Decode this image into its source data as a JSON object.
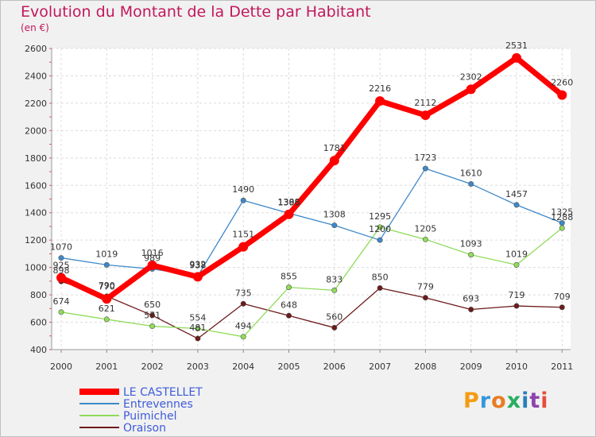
{
  "title": "Evolution du Montant de la Dette par Habitant",
  "subtitle": "(en €)",
  "logo": {
    "letters": [
      "P",
      "r",
      "o",
      "x",
      "i",
      "t",
      "i"
    ],
    "colors": [
      "#f39c12",
      "#3498db",
      "#e67e22",
      "#27ae60",
      "#2980b9",
      "#8e44ad",
      "#e74c3c"
    ]
  },
  "chart_data": {
    "type": "line",
    "title": "Evolution du Montant de la Dette par Habitant",
    "ylabel": "(en €)",
    "xlabel": "",
    "x": [
      "2000",
      "2001",
      "2002",
      "2003",
      "2004",
      "2005",
      "2006",
      "2007",
      "2008",
      "2009",
      "2010",
      "2011"
    ],
    "ylim": [
      400,
      2600
    ],
    "yticks": [
      400,
      600,
      800,
      1000,
      1200,
      1400,
      1600,
      1800,
      2000,
      2200,
      2400,
      2600
    ],
    "grid": true,
    "legend_position": "bottom-left",
    "series": [
      {
        "name": "Oraison",
        "color": "#6d1a1a",
        "values": [
          898,
          790,
          650,
          481,
          735,
          648,
          560,
          850,
          779,
          693,
          719,
          709
        ]
      },
      {
        "name": "Puimichel",
        "color": "#8fdc5a",
        "values": [
          674,
          621,
          571,
          554,
          494,
          855,
          833,
          1295,
          1205,
          1093,
          1019,
          1288
        ]
      },
      {
        "name": "Entrevennes",
        "color": "#3d88c9",
        "values": [
          1070,
          1019,
          989,
          938,
          1490,
          1396,
          1308,
          1200,
          1723,
          1610,
          1457,
          1325
        ]
      },
      {
        "name": "LE CASTELLET",
        "color": "#ff0000",
        "values": [
          925,
          770,
          1016,
          932,
          1151,
          1388,
          1781,
          2216,
          2112,
          2302,
          2531,
          2260
        ]
      }
    ],
    "legend_order": [
      "LE CASTELLET",
      "Entrevennes",
      "Puimichel",
      "Oraison"
    ],
    "emphasis": "LE CASTELLET"
  }
}
